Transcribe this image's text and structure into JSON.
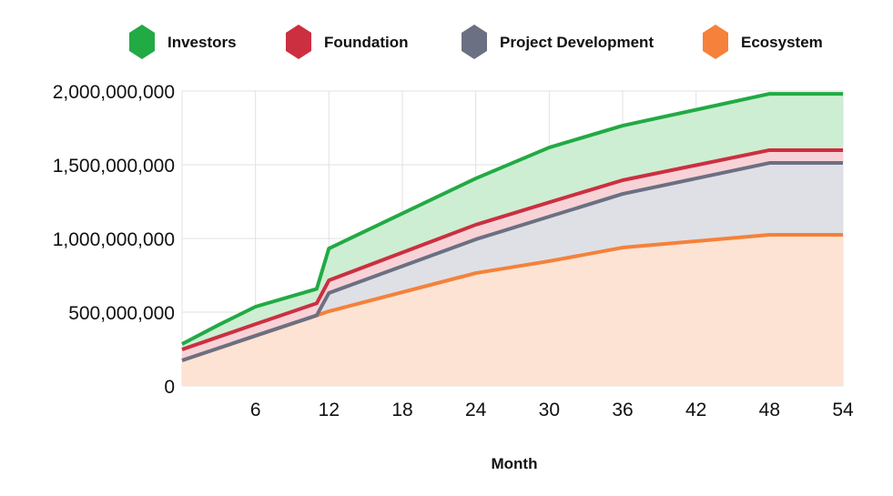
{
  "chart_data": {
    "type": "area",
    "stacked": true,
    "title": "",
    "xlabel": "Month",
    "ylabel": "",
    "xlim": [
      0,
      54
    ],
    "ylim": [
      0,
      2000000000
    ],
    "xticks": [
      6,
      12,
      18,
      24,
      30,
      36,
      42,
      48,
      54
    ],
    "yticks": [
      0,
      500000000,
      1000000000,
      1500000000,
      2000000000
    ],
    "ytick_labels": [
      "0",
      "500,000,000",
      "1,000,000,000",
      "1,500,000,000",
      "2,000,000,000"
    ],
    "grid": true,
    "legend_position": "top",
    "x": [
      0,
      3,
      6,
      11,
      12,
      24,
      30,
      36,
      48,
      54
    ],
    "series": [
      {
        "name": "Ecosystem",
        "color": "#f5813a",
        "fill": "#fde3d3",
        "values": [
          173000000,
          256000000,
          340000000,
          478000000,
          506000000,
          765000000,
          846000000,
          938000000,
          1025000000,
          1025000000
        ]
      },
      {
        "name": "Project Development",
        "color": "#6b7082",
        "fill": "#dfe0e6",
        "values": [
          0,
          0,
          0,
          0,
          124000000,
          229000000,
          302000000,
          364000000,
          487000000,
          487000000
        ]
      },
      {
        "name": "Foundation",
        "color": "#cc2f40",
        "fill": "#f7d3d7",
        "values": [
          74000000,
          77000000,
          79000000,
          82000000,
          86000000,
          99000000,
          97000000,
          93000000,
          87000000,
          87000000
        ]
      },
      {
        "name": "Investors",
        "color": "#22aa44",
        "fill": "#cdeed3",
        "values": [
          37000000,
          81000000,
          118000000,
          98000000,
          216000000,
          314000000,
          372000000,
          370000000,
          382000000,
          382000000
        ]
      }
    ],
    "legend": [
      "Investors",
      "Foundation",
      "Project Development",
      "Ecosystem"
    ]
  }
}
